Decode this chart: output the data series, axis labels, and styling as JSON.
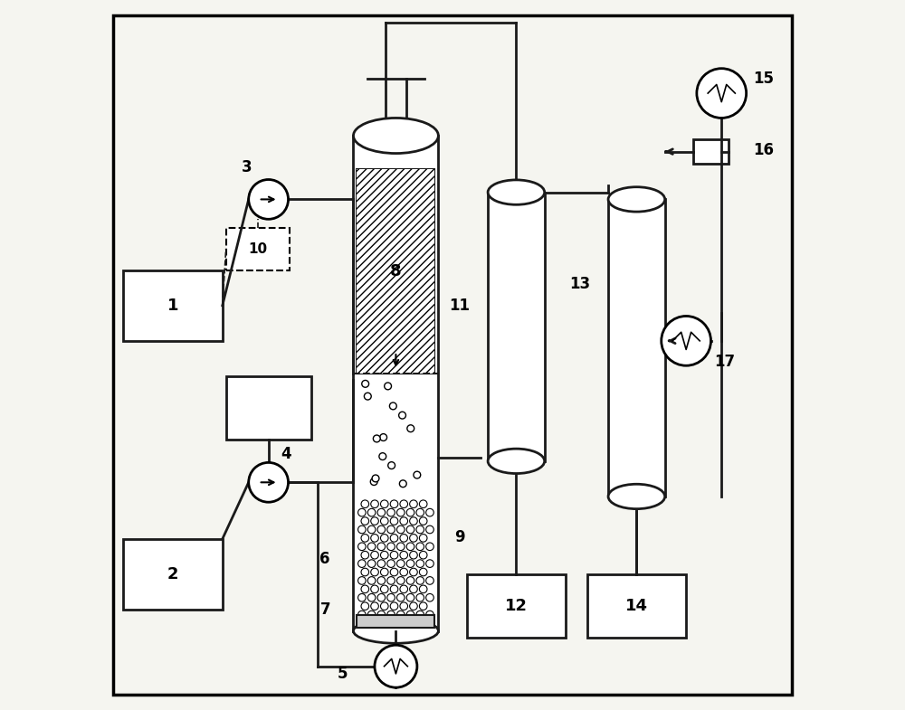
{
  "bg_color": "#f5f5f0",
  "border_color": "#2a2a2a",
  "line_color": "#1a1a1a",
  "lw": 2.0,
  "fig_width": 10.0,
  "fig_height": 7.85
}
